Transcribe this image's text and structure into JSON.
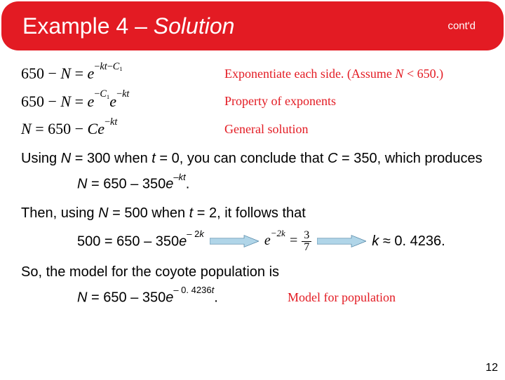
{
  "header": {
    "title_prefix": "Example 4 – ",
    "title_solution": "Solution",
    "contd": "cont'd"
  },
  "eqs": [
    {
      "lhs_html": "650 − <span class='nvar'>N</span> = <span class='nvar'>e</span><sup>−<span class='nvar'>kt</span>−<span class='nvar'>C</span><span class='sub1'>1</span></sup>",
      "note_html": "Exponentiate each side. (Assume <span class='nvar'>N</span> < 650.)"
    },
    {
      "lhs_html": "650 − <span class='nvar'>N</span> = <span class='nvar'>e</span><sup>−<span class='nvar'>C</span><span class='sub1'>1</span></sup><span class='nvar'>e</span><sup>−<span class='nvar'>kt</span></sup>",
      "note_html": "Property of exponents"
    },
    {
      "lhs_html": "<span class='nvar'>N</span> = 650 − <span class='nvar'>Ce</span><sup>−<span class='nvar'>kt</span></sup>",
      "note_html": "General solution"
    }
  ],
  "p1_html": "Using <span class='nvar'>N</span> = 300 when <span class='nvar'>t</span> = 0, you can conclude that <span class='nvar'>C</span> = 350, which produces",
  "eq_kt_html": "N <span class='up'>= 650 – 350</span>e<sup class='up'>–<span class='it'>kt</span></sup><span class='up'>.</span>",
  "p2_html": "Then, using <span class='nvar'>N</span> = 500 when <span class='nvar'>t</span> = 2, it follows that",
  "arrow": {
    "eq1_html": "<span class='up'>500 = 650 – 350</span>e<sup class='up'>– 2<span class='it'>k</span></sup>",
    "eq2_html": "e<sup>−2k</sup> = ",
    "frac_num": "3",
    "frac_den": "7",
    "eq3_html": "k <span class='up'>≈ 0. 4236.</span>"
  },
  "p3": "So, the model for the coyote population is",
  "eq_final_html": "N <span class='up'>= 650 – 350</span>e<sup class='up'>– 0. 4236<span class='it'>t</span></sup><span class='up'>.</span>",
  "model_note": "Model for population",
  "slide_number": "12",
  "colors": {
    "accent": "#e31b23",
    "text": "#000000",
    "bg": "#ffffff",
    "arrow_fill": "#b0d5e8",
    "arrow_stroke": "#4a7fa0"
  }
}
